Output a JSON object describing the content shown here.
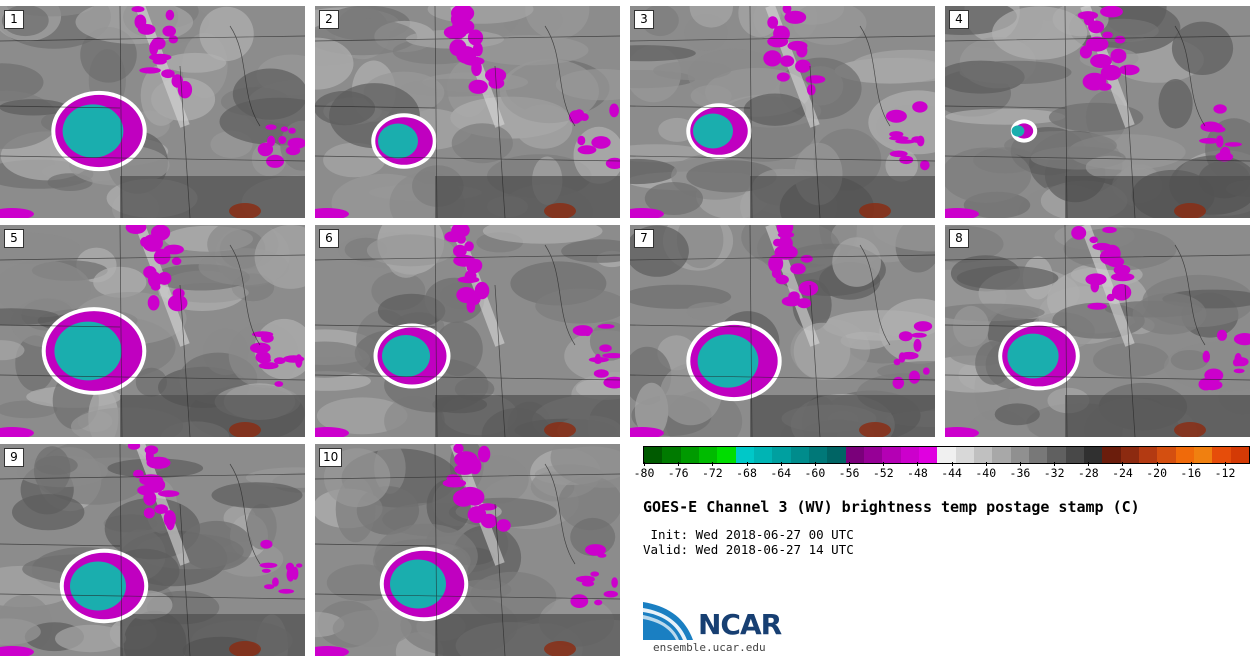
{
  "figure": {
    "title": "GOES-E Channel 3 (WV) brightness temp postage stamp (C)",
    "init_line": " Init: Wed 2018-06-27 00 UTC",
    "valid_line": "Valid: Wed 2018-06-27 14 UTC"
  },
  "stamps": [
    {
      "label": "1"
    },
    {
      "label": "2"
    },
    {
      "label": "3"
    },
    {
      "label": "4"
    },
    {
      "label": "5"
    },
    {
      "label": "6"
    },
    {
      "label": "7"
    },
    {
      "label": "8"
    },
    {
      "label": "9"
    },
    {
      "label": "10"
    }
  ],
  "colorbar": {
    "units": "C",
    "ticks": [
      "-80",
      "-76",
      "-72",
      "-68",
      "-64",
      "-60",
      "-56",
      "-52",
      "-48",
      "-44",
      "-40",
      "-36",
      "-32",
      "-28",
      "-24",
      "-20",
      "-16",
      "-12"
    ],
    "colors": [
      "#005a00",
      "#007a00",
      "#009a00",
      "#00bb00",
      "#00dd00",
      "#00c8c8",
      "#00b4b4",
      "#00a0a0",
      "#008c8c",
      "#007878",
      "#006464",
      "#7a007a",
      "#960096",
      "#b400b4",
      "#cc00cc",
      "#e000e0",
      "#f0f0f0",
      "#d8d8d8",
      "#c0c0c0",
      "#a8a8a8",
      "#909090",
      "#787878",
      "#606060",
      "#484848",
      "#303030",
      "#6b1d0c",
      "#8c2a10",
      "#b33a12",
      "#d44f10",
      "#f06a0a",
      "#f08010",
      "#e64d0a",
      "#d43a05"
    ]
  },
  "logo": {
    "name": "NCAR",
    "url": "ensemble.ucar.edu"
  }
}
